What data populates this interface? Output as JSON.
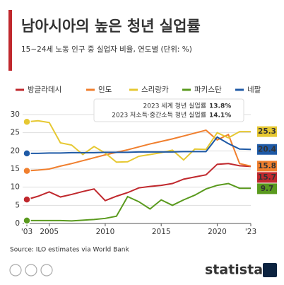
{
  "chart_data": {
    "type": "line",
    "title": "남아시아의 높은 청년 실업률",
    "subtitle": "15~24세 노동 인구 중 실업자 비율, 연도별 (단위: %)",
    "source": "Source: ILO estimates via World Bank",
    "brand": "statista",
    "annotations": [
      {
        "text": "2023 세계 청년 실업률",
        "value": "13.8%"
      },
      {
        "text": "2023 저소득·중간소득 청년 실업률",
        "value": "14.1%"
      }
    ],
    "x": [
      2003,
      2004,
      2005,
      2006,
      2007,
      2008,
      2009,
      2010,
      2011,
      2012,
      2013,
      2014,
      2015,
      2016,
      2017,
      2018,
      2019,
      2020,
      2021,
      2022,
      2023
    ],
    "xlim": [
      2003,
      2023
    ],
    "xticks": [
      {
        "value": 2003,
        "label": "'03"
      },
      2005,
      2010,
      2015,
      2020,
      {
        "value": 2023,
        "label": "'23"
      }
    ],
    "ylim": [
      0,
      30
    ],
    "yticks": [
      0,
      5,
      10,
      15,
      20,
      25,
      30
    ],
    "grid": true,
    "series": [
      {
        "name": "방글라데시",
        "color": "#c0282d",
        "values": [
          6.6,
          7.5,
          8.7,
          7.3,
          8.0,
          8.8,
          9.5,
          6.3,
          7.5,
          8.5,
          9.8,
          10.2,
          10.5,
          11.0,
          12.2,
          12.8,
          13.4,
          16.3,
          16.5,
          15.9,
          15.7
        ]
      },
      {
        "name": "인도",
        "color": "#f07f2e",
        "values": [
          14.5,
          14.7,
          15.0,
          15.8,
          16.5,
          17.3,
          18.1,
          18.9,
          19.6,
          20.3,
          21.1,
          21.9,
          22.6,
          23.3,
          24.1,
          24.9,
          25.7,
          23.0,
          24.5,
          16.5,
          15.8
        ]
      },
      {
        "name": "스리랑카",
        "color": "#e6c832",
        "values": [
          28.0,
          28.3,
          27.8,
          22.2,
          21.6,
          19.0,
          21.2,
          19.4,
          16.9,
          17.0,
          18.5,
          19.0,
          19.5,
          20.2,
          17.5,
          20.5,
          20.4,
          25.0,
          23.6,
          25.3,
          25.3
        ]
      },
      {
        "name": "파키스탄",
        "color": "#5a9a1e",
        "values": [
          0.8,
          0.8,
          0.8,
          0.8,
          0.7,
          0.9,
          1.1,
          1.4,
          2.0,
          7.4,
          6.0,
          4.0,
          6.5,
          5.0,
          6.5,
          7.8,
          9.5,
          10.5,
          11.0,
          9.7,
          9.7
        ]
      },
      {
        "name": "네팔",
        "color": "#1f5aa6",
        "values": [
          19.3,
          19.3,
          19.4,
          19.4,
          19.5,
          19.5,
          19.5,
          19.6,
          19.6,
          19.6,
          19.7,
          19.7,
          19.7,
          19.7,
          19.8,
          19.8,
          19.8,
          23.8,
          22.0,
          20.5,
          20.4
        ]
      }
    ]
  }
}
